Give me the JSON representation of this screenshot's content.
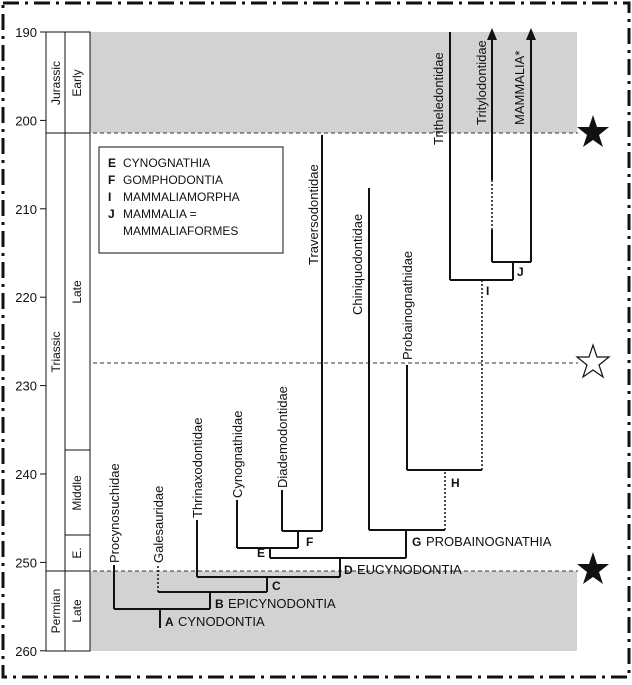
{
  "axis": {
    "ticks": [
      "190",
      "200",
      "210",
      "220",
      "230",
      "240",
      "250",
      "260"
    ]
  },
  "geologic_scale": {
    "periods": [
      "Jurassic",
      "Triassic",
      "Permian"
    ],
    "epochs": [
      "Early",
      "Late",
      "Middle",
      "E.",
      "Late"
    ]
  },
  "legend": {
    "entries": [
      {
        "letter": "E",
        "text": "CYNOGNATHIA"
      },
      {
        "letter": "F",
        "text": "GOMPHODONTIA"
      },
      {
        "letter": "I",
        "text": "MAMMALIAMORPHA"
      },
      {
        "letter": "J",
        "text": "MAMMALIA ="
      }
    ],
    "continuation": "MAMMALIAFORMES"
  },
  "taxa": [
    "Procynosuchidae",
    "Galesauridae",
    "Thrinaxodontidae",
    "Cynognathidae",
    "Diademodontidae",
    "Traversodontidae",
    "Chiniquodontidae",
    "Probainognathidae",
    "Tritheledontidae",
    "Tritylodontidae",
    "MAMMALIA*"
  ],
  "nodes": {
    "A": "CYNODONTIA",
    "B": "EPICYNODONTIA",
    "C": "",
    "D": "EUCYNODONTIA",
    "E": "",
    "F": "",
    "G": "PROBAINOGNATHIA",
    "H": "",
    "I": "",
    "J": ""
  },
  "markers": {
    "extinction_events": [
      {
        "boundary": "Triassic–Jurassic",
        "symbol": "filled-star"
      },
      {
        "boundary": "Carnian",
        "symbol": "open-star"
      },
      {
        "boundary": "Permian–Triassic",
        "symbol": "filled-star"
      }
    ]
  }
}
